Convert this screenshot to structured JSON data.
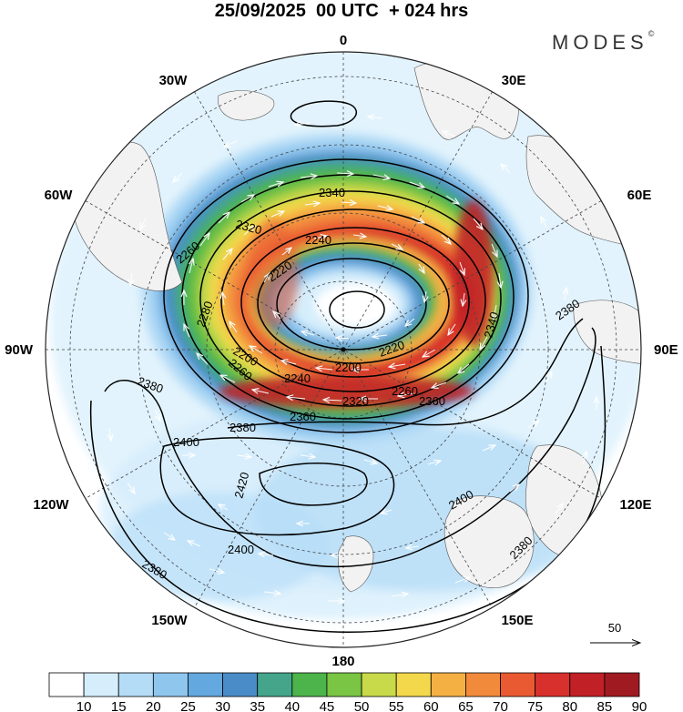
{
  "header": {
    "title": "25/09/2025  00 UTC  + 024 hrs",
    "brand": "MODES",
    "brand_mark": "©"
  },
  "longitude_labels": {
    "lon_0": "0",
    "lon_30e": "30E",
    "lon_60e": "60E",
    "lon_90e": "90E",
    "lon_120e": "120E",
    "lon_150e": "150E",
    "lon_180": "180",
    "lon_150w": "150W",
    "lon_120w": "120W",
    "lon_90w": "90W",
    "lon_60w": "60W",
    "lon_30w": "30W"
  },
  "contour_labels": [
    "2340",
    "2320",
    "2240",
    "2260",
    "2280",
    "2220",
    "2200",
    "2260",
    "2240",
    "2320",
    "2360",
    "2380",
    "2360",
    "2340",
    "2380",
    "2380",
    "2400",
    "2420",
    "2400",
    "2400",
    "2380",
    "2380",
    "2220",
    "2200",
    "2260"
  ],
  "vector_reference": {
    "value": "50"
  },
  "colorbar": {
    "ticks": [
      "10",
      "15",
      "20",
      "25",
      "30",
      "35",
      "40",
      "45",
      "50",
      "55",
      "60",
      "65",
      "70",
      "75",
      "80",
      "85",
      "90"
    ],
    "colors": [
      "#ffffff",
      "#d6eefc",
      "#b4dcf6",
      "#8fc6ee",
      "#63a8de",
      "#4a8cc8",
      "#44a58a",
      "#4cb44a",
      "#7ac544",
      "#c8d94a",
      "#f4d84c",
      "#f5b044",
      "#f28a3c",
      "#ea5a32",
      "#d8302c",
      "#c02026",
      "#a01a22"
    ]
  }
}
